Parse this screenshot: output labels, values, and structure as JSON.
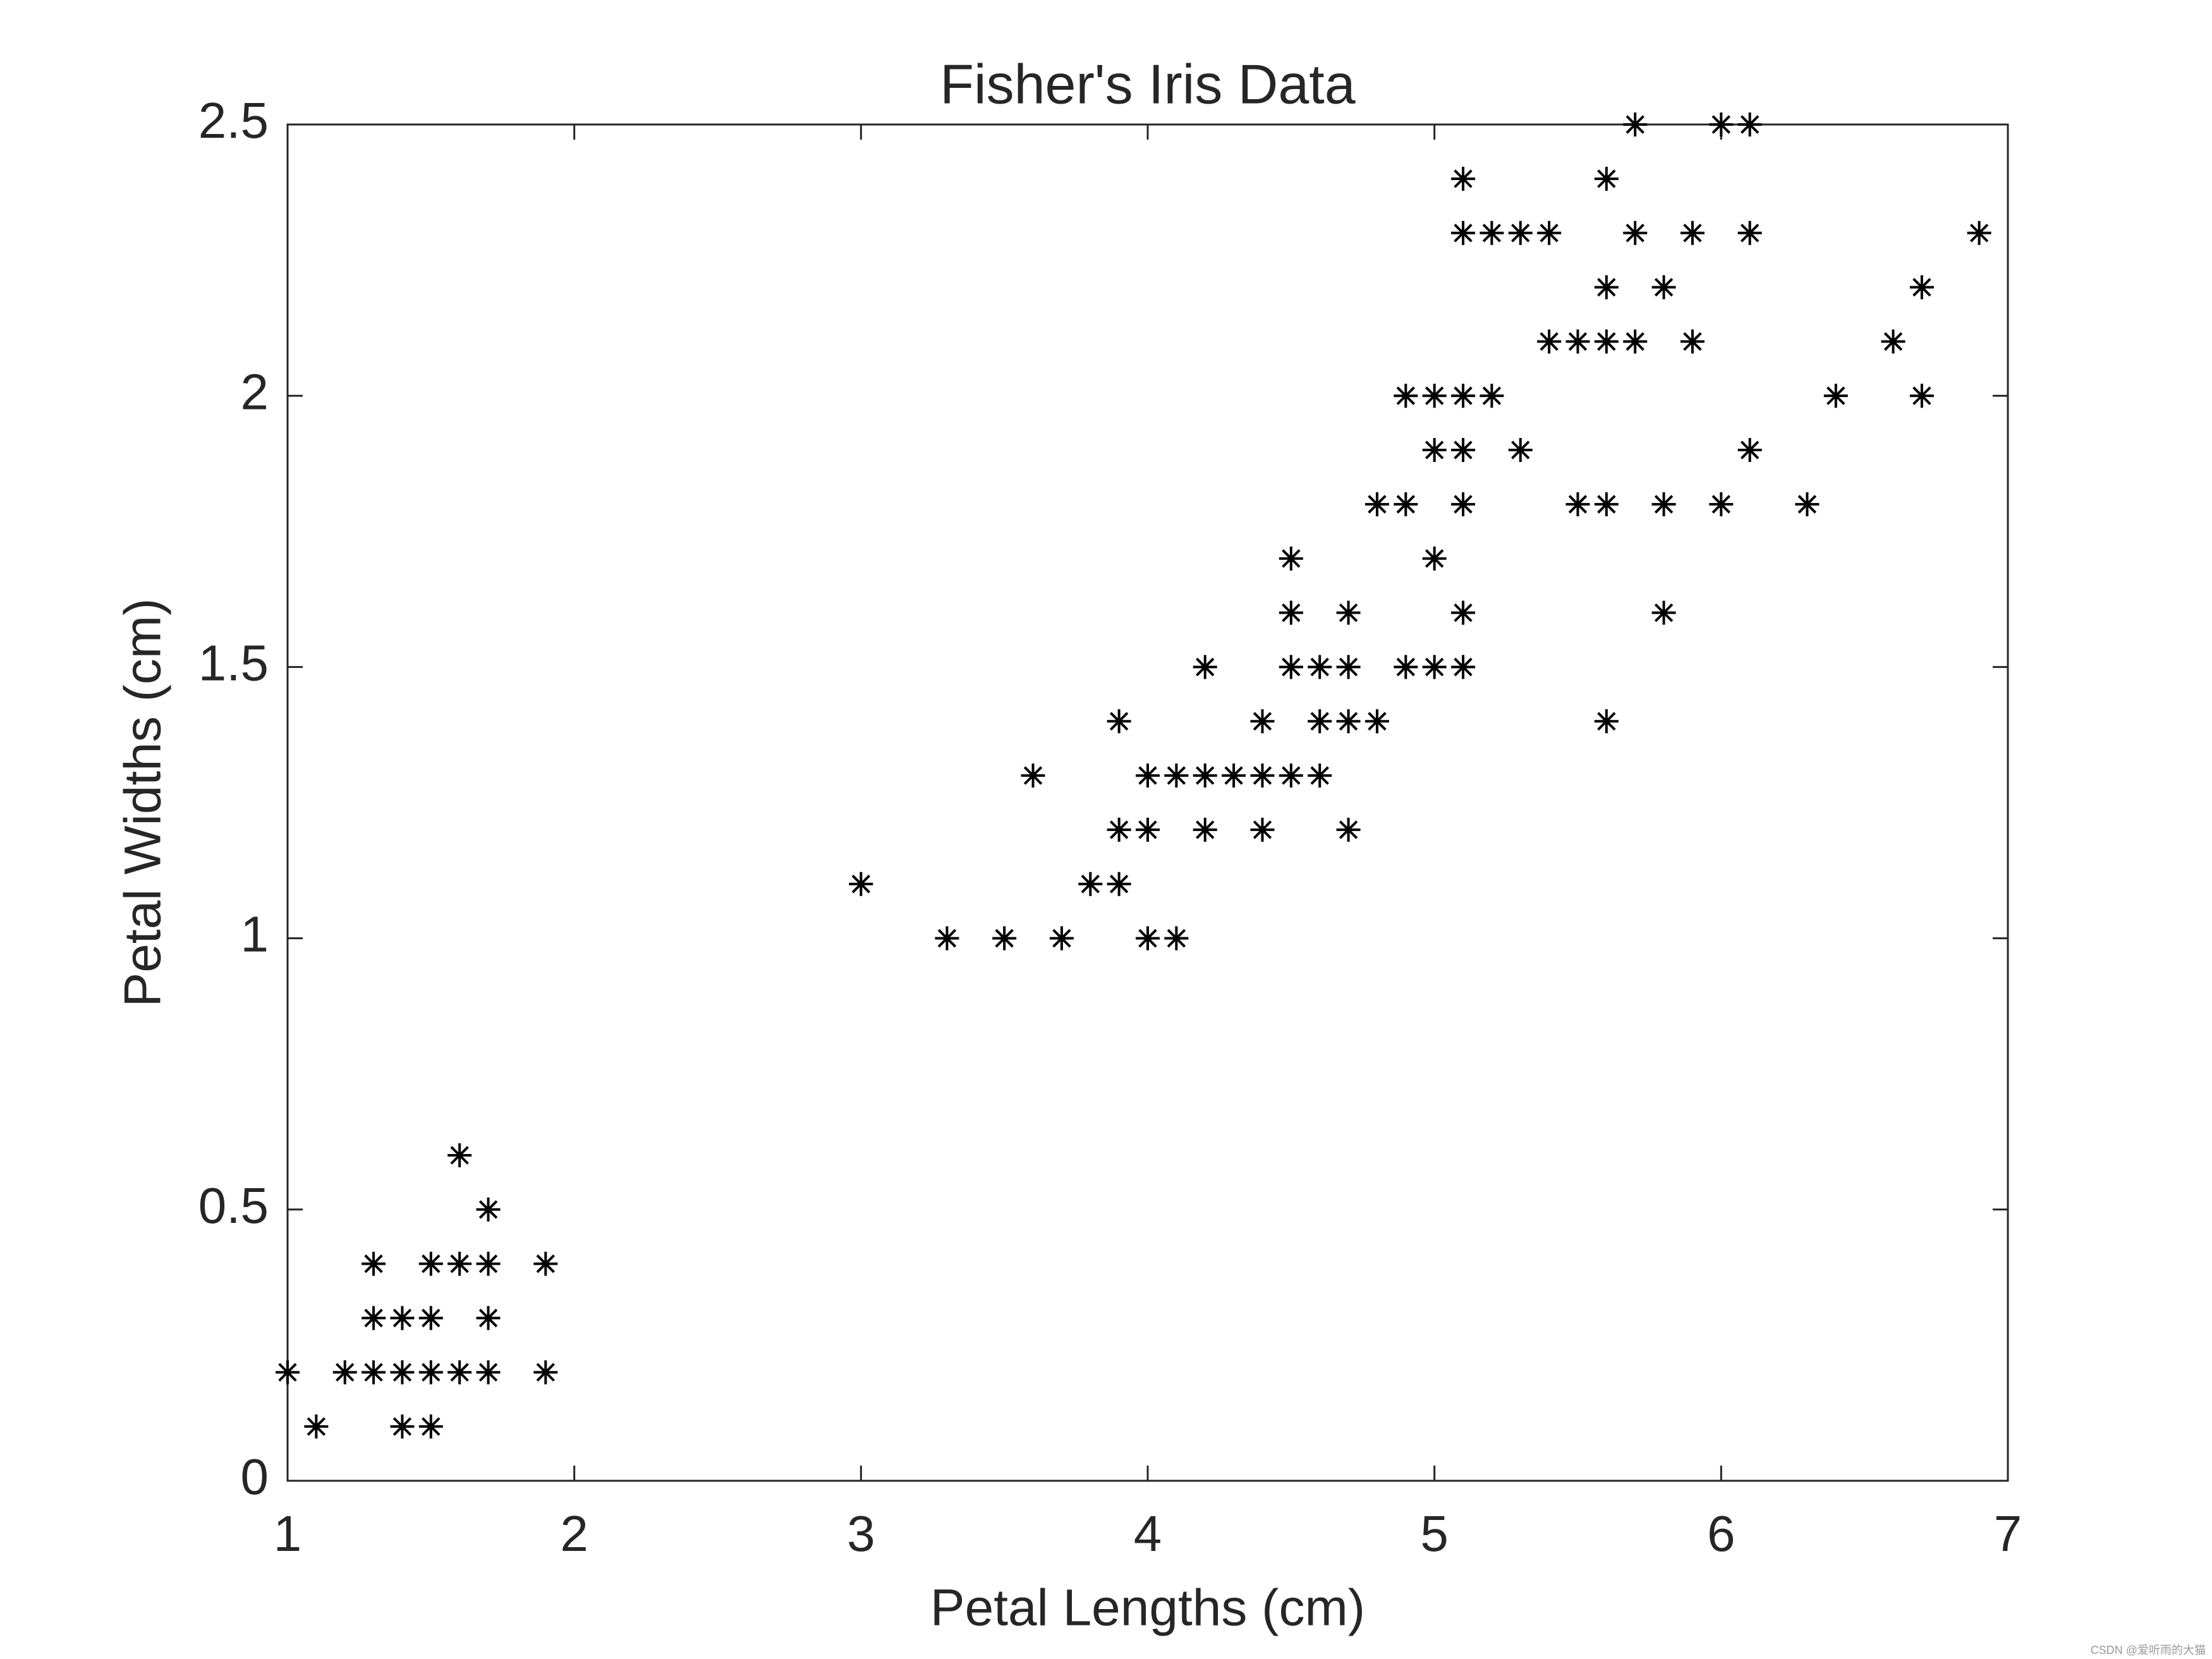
{
  "chart_data": {
    "type": "scatter",
    "title": "Fisher's Iris Data",
    "xlabel": "Petal Lengths (cm)",
    "ylabel": "Petal Widths (cm)",
    "x": [
      1.0,
      1.2,
      1.3,
      1.4,
      1.5,
      1.6,
      1.7,
      1.9,
      1.1,
      1.4,
      1.5,
      1.3,
      1.4,
      1.5,
      1.7,
      1.3,
      1.5,
      1.6,
      1.7,
      1.9,
      1.7,
      1.6,
      3.0,
      3.8,
      3.9,
      3.3,
      3.5,
      3.7,
      4.0,
      4.1,
      3.6,
      4.0,
      4.1,
      4.2,
      4.3,
      4.4,
      4.5,
      4.6,
      3.9,
      4.4,
      4.6,
      4.7,
      4.8,
      5.6,
      3.9,
      4.0,
      4.2,
      4.4,
      4.7,
      4.2,
      4.5,
      4.6,
      4.7,
      4.9,
      5.0,
      5.1,
      4.5,
      4.7,
      5.1,
      5.8,
      4.5,
      5.0,
      4.8,
      4.9,
      5.1,
      5.5,
      5.6,
      5.8,
      6.0,
      6.3,
      5.0,
      5.1,
      5.3,
      6.1,
      4.9,
      5.0,
      5.1,
      5.2,
      6.4,
      6.7,
      5.4,
      5.5,
      5.6,
      5.7,
      5.9,
      6.6,
      5.6,
      5.8,
      6.7,
      5.1,
      5.2,
      5.3,
      5.4,
      5.7,
      5.9,
      6.1,
      6.9,
      5.1,
      5.6,
      5.7,
      6.0,
      6.1
    ],
    "values": [
      0.2,
      0.2,
      0.2,
      0.2,
      0.2,
      0.2,
      0.2,
      0.2,
      0.1,
      0.1,
      0.1,
      0.3,
      0.3,
      0.3,
      0.3,
      0.4,
      0.4,
      0.4,
      0.4,
      0.4,
      0.5,
      0.6,
      1.1,
      1.1,
      1.1,
      1.0,
      1.0,
      1.0,
      1.0,
      1.0,
      1.3,
      1.3,
      1.3,
      1.3,
      1.3,
      1.3,
      1.3,
      1.3,
      1.4,
      1.4,
      1.4,
      1.4,
      1.4,
      1.4,
      1.2,
      1.2,
      1.2,
      1.2,
      1.2,
      1.5,
      1.5,
      1.5,
      1.5,
      1.5,
      1.5,
      1.5,
      1.6,
      1.6,
      1.6,
      1.6,
      1.7,
      1.7,
      1.8,
      1.8,
      1.8,
      1.8,
      1.8,
      1.8,
      1.8,
      1.8,
      1.9,
      1.9,
      1.9,
      1.9,
      2.0,
      2.0,
      2.0,
      2.0,
      2.0,
      2.0,
      2.1,
      2.1,
      2.1,
      2.1,
      2.1,
      2.1,
      2.2,
      2.2,
      2.2,
      2.3,
      2.3,
      2.3,
      2.3,
      2.3,
      2.3,
      2.3,
      2.3,
      2.4,
      2.4,
      2.5,
      2.5,
      2.5
    ],
    "color": "#000000",
    "xlim": [
      1,
      7
    ],
    "xticks": [
      1,
      2,
      3,
      4,
      5,
      6,
      7
    ],
    "ylim": [
      0,
      2.5
    ],
    "yticks": [
      0,
      0.5,
      1,
      1.5,
      2,
      2.5
    ],
    "grid": false
  },
  "watermark": "CSDN @爱听雨的大猫"
}
